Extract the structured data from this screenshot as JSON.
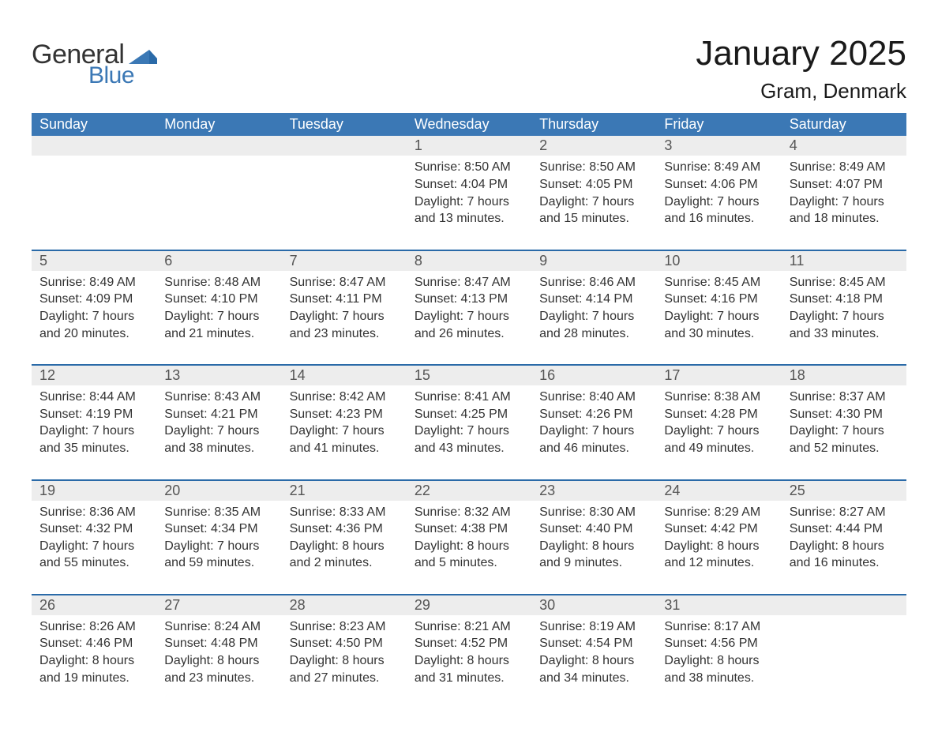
{
  "brand": {
    "word1": "General",
    "word2": "Blue",
    "flag_color": "#3b78b5"
  },
  "title": {
    "month_year": "January 2025",
    "location": "Gram, Denmark"
  },
  "colors": {
    "header_bg": "#3b78b5",
    "header_text": "#ffffff",
    "daynum_bg": "#ededed",
    "daynum_text": "#555555",
    "divider": "#2a6aa8",
    "body_text": "#333333",
    "page_bg": "#ffffff"
  },
  "typography": {
    "title_fontsize_pt": 33,
    "subtitle_fontsize_pt": 20,
    "dayheader_fontsize_pt": 14,
    "daynum_fontsize_pt": 14,
    "body_fontsize_pt": 12,
    "font_family": "Segoe UI / Arial"
  },
  "calendar": {
    "type": "table",
    "day_headers": [
      "Sunday",
      "Monday",
      "Tuesday",
      "Wednesday",
      "Thursday",
      "Friday",
      "Saturday"
    ],
    "leading_blanks": 3,
    "days": [
      {
        "n": 1,
        "sunrise": "Sunrise: 8:50 AM",
        "sunset": "Sunset: 4:04 PM",
        "daylight1": "Daylight: 7 hours",
        "daylight2": "and 13 minutes."
      },
      {
        "n": 2,
        "sunrise": "Sunrise: 8:50 AM",
        "sunset": "Sunset: 4:05 PM",
        "daylight1": "Daylight: 7 hours",
        "daylight2": "and 15 minutes."
      },
      {
        "n": 3,
        "sunrise": "Sunrise: 8:49 AM",
        "sunset": "Sunset: 4:06 PM",
        "daylight1": "Daylight: 7 hours",
        "daylight2": "and 16 minutes."
      },
      {
        "n": 4,
        "sunrise": "Sunrise: 8:49 AM",
        "sunset": "Sunset: 4:07 PM",
        "daylight1": "Daylight: 7 hours",
        "daylight2": "and 18 minutes."
      },
      {
        "n": 5,
        "sunrise": "Sunrise: 8:49 AM",
        "sunset": "Sunset: 4:09 PM",
        "daylight1": "Daylight: 7 hours",
        "daylight2": "and 20 minutes."
      },
      {
        "n": 6,
        "sunrise": "Sunrise: 8:48 AM",
        "sunset": "Sunset: 4:10 PM",
        "daylight1": "Daylight: 7 hours",
        "daylight2": "and 21 minutes."
      },
      {
        "n": 7,
        "sunrise": "Sunrise: 8:47 AM",
        "sunset": "Sunset: 4:11 PM",
        "daylight1": "Daylight: 7 hours",
        "daylight2": "and 23 minutes."
      },
      {
        "n": 8,
        "sunrise": "Sunrise: 8:47 AM",
        "sunset": "Sunset: 4:13 PM",
        "daylight1": "Daylight: 7 hours",
        "daylight2": "and 26 minutes."
      },
      {
        "n": 9,
        "sunrise": "Sunrise: 8:46 AM",
        "sunset": "Sunset: 4:14 PM",
        "daylight1": "Daylight: 7 hours",
        "daylight2": "and 28 minutes."
      },
      {
        "n": 10,
        "sunrise": "Sunrise: 8:45 AM",
        "sunset": "Sunset: 4:16 PM",
        "daylight1": "Daylight: 7 hours",
        "daylight2": "and 30 minutes."
      },
      {
        "n": 11,
        "sunrise": "Sunrise: 8:45 AM",
        "sunset": "Sunset: 4:18 PM",
        "daylight1": "Daylight: 7 hours",
        "daylight2": "and 33 minutes."
      },
      {
        "n": 12,
        "sunrise": "Sunrise: 8:44 AM",
        "sunset": "Sunset: 4:19 PM",
        "daylight1": "Daylight: 7 hours",
        "daylight2": "and 35 minutes."
      },
      {
        "n": 13,
        "sunrise": "Sunrise: 8:43 AM",
        "sunset": "Sunset: 4:21 PM",
        "daylight1": "Daylight: 7 hours",
        "daylight2": "and 38 minutes."
      },
      {
        "n": 14,
        "sunrise": "Sunrise: 8:42 AM",
        "sunset": "Sunset: 4:23 PM",
        "daylight1": "Daylight: 7 hours",
        "daylight2": "and 41 minutes."
      },
      {
        "n": 15,
        "sunrise": "Sunrise: 8:41 AM",
        "sunset": "Sunset: 4:25 PM",
        "daylight1": "Daylight: 7 hours",
        "daylight2": "and 43 minutes."
      },
      {
        "n": 16,
        "sunrise": "Sunrise: 8:40 AM",
        "sunset": "Sunset: 4:26 PM",
        "daylight1": "Daylight: 7 hours",
        "daylight2": "and 46 minutes."
      },
      {
        "n": 17,
        "sunrise": "Sunrise: 8:38 AM",
        "sunset": "Sunset: 4:28 PM",
        "daylight1": "Daylight: 7 hours",
        "daylight2": "and 49 minutes."
      },
      {
        "n": 18,
        "sunrise": "Sunrise: 8:37 AM",
        "sunset": "Sunset: 4:30 PM",
        "daylight1": "Daylight: 7 hours",
        "daylight2": "and 52 minutes."
      },
      {
        "n": 19,
        "sunrise": "Sunrise: 8:36 AM",
        "sunset": "Sunset: 4:32 PM",
        "daylight1": "Daylight: 7 hours",
        "daylight2": "and 55 minutes."
      },
      {
        "n": 20,
        "sunrise": "Sunrise: 8:35 AM",
        "sunset": "Sunset: 4:34 PM",
        "daylight1": "Daylight: 7 hours",
        "daylight2": "and 59 minutes."
      },
      {
        "n": 21,
        "sunrise": "Sunrise: 8:33 AM",
        "sunset": "Sunset: 4:36 PM",
        "daylight1": "Daylight: 8 hours",
        "daylight2": "and 2 minutes."
      },
      {
        "n": 22,
        "sunrise": "Sunrise: 8:32 AM",
        "sunset": "Sunset: 4:38 PM",
        "daylight1": "Daylight: 8 hours",
        "daylight2": "and 5 minutes."
      },
      {
        "n": 23,
        "sunrise": "Sunrise: 8:30 AM",
        "sunset": "Sunset: 4:40 PM",
        "daylight1": "Daylight: 8 hours",
        "daylight2": "and 9 minutes."
      },
      {
        "n": 24,
        "sunrise": "Sunrise: 8:29 AM",
        "sunset": "Sunset: 4:42 PM",
        "daylight1": "Daylight: 8 hours",
        "daylight2": "and 12 minutes."
      },
      {
        "n": 25,
        "sunrise": "Sunrise: 8:27 AM",
        "sunset": "Sunset: 4:44 PM",
        "daylight1": "Daylight: 8 hours",
        "daylight2": "and 16 minutes."
      },
      {
        "n": 26,
        "sunrise": "Sunrise: 8:26 AM",
        "sunset": "Sunset: 4:46 PM",
        "daylight1": "Daylight: 8 hours",
        "daylight2": "and 19 minutes."
      },
      {
        "n": 27,
        "sunrise": "Sunrise: 8:24 AM",
        "sunset": "Sunset: 4:48 PM",
        "daylight1": "Daylight: 8 hours",
        "daylight2": "and 23 minutes."
      },
      {
        "n": 28,
        "sunrise": "Sunrise: 8:23 AM",
        "sunset": "Sunset: 4:50 PM",
        "daylight1": "Daylight: 8 hours",
        "daylight2": "and 27 minutes."
      },
      {
        "n": 29,
        "sunrise": "Sunrise: 8:21 AM",
        "sunset": "Sunset: 4:52 PM",
        "daylight1": "Daylight: 8 hours",
        "daylight2": "and 31 minutes."
      },
      {
        "n": 30,
        "sunrise": "Sunrise: 8:19 AM",
        "sunset": "Sunset: 4:54 PM",
        "daylight1": "Daylight: 8 hours",
        "daylight2": "and 34 minutes."
      },
      {
        "n": 31,
        "sunrise": "Sunrise: 8:17 AM",
        "sunset": "Sunset: 4:56 PM",
        "daylight1": "Daylight: 8 hours",
        "daylight2": "and 38 minutes."
      }
    ]
  }
}
